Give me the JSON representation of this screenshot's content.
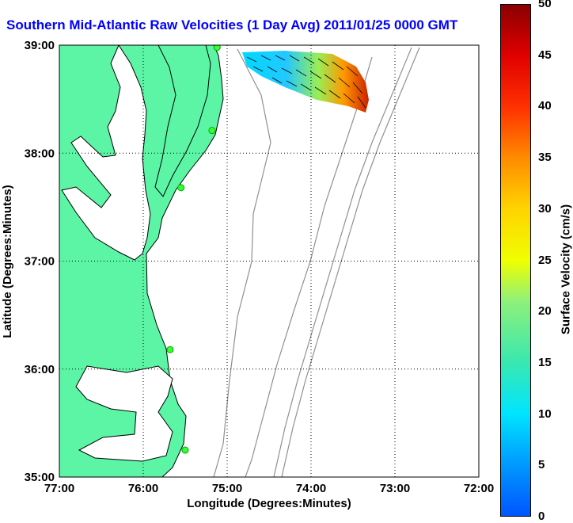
{
  "title": "Southern Mid-Atlantic Raw Velocities (1 Day Avg) 2011/01/25 0000 GMT",
  "x_axis": {
    "label": "Longitude (Degrees:Minutes)",
    "ticks": [
      {
        "value": -77,
        "label": "77:00"
      },
      {
        "value": -76,
        "label": "76:00"
      },
      {
        "value": -75,
        "label": "75:00"
      },
      {
        "value": -74,
        "label": "74:00"
      },
      {
        "value": -73,
        "label": "73:00"
      },
      {
        "value": -72,
        "label": "72:00"
      }
    ]
  },
  "y_axis": {
    "label": "Latitude (Degrees:Minutes)",
    "ticks": [
      {
        "value": 39,
        "label": "39:00"
      },
      {
        "value": 38,
        "label": "38:00"
      },
      {
        "value": 37,
        "label": "37:00"
      },
      {
        "value": 36,
        "label": "36:00"
      },
      {
        "value": 35,
        "label": "35:00"
      }
    ]
  },
  "colorbar": {
    "label": "Surface Velocity (cm/s)",
    "min": 0,
    "max": 50,
    "ticks": [
      {
        "value": 50,
        "label": "50"
      },
      {
        "value": 45,
        "label": "45"
      },
      {
        "value": 40,
        "label": "40"
      },
      {
        "value": 35,
        "label": "35"
      },
      {
        "value": 30,
        "label": "30"
      },
      {
        "value": 25,
        "label": "25"
      },
      {
        "value": 20,
        "label": "20"
      },
      {
        "value": 15,
        "label": "15"
      },
      {
        "value": 10,
        "label": "10"
      },
      {
        "value": 5,
        "label": "5"
      },
      {
        "value": 0,
        "label": "0"
      }
    ]
  },
  "colors": {
    "land": "#5cf5a5",
    "coastline": "#000000",
    "bathymetry": "#909090",
    "station": "#33ff33",
    "title": "#0000ff"
  },
  "stations": [
    {
      "lon": -75.12,
      "lat": 38.98
    },
    {
      "lon": -75.18,
      "lat": 38.21
    },
    {
      "lon": -75.55,
      "lat": 37.68
    },
    {
      "lon": -75.68,
      "lat": 36.18
    },
    {
      "lon": -75.5,
      "lat": 35.25
    }
  ]
}
